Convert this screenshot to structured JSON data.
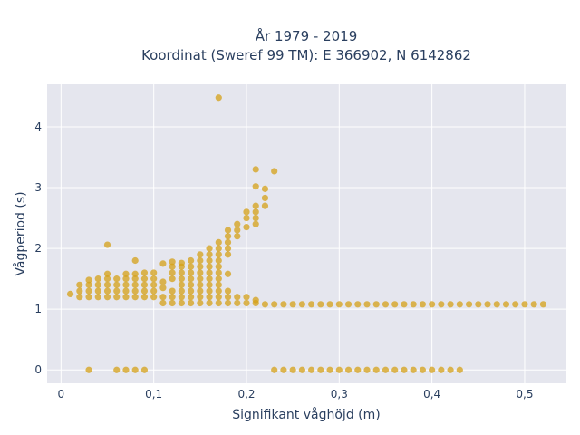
{
  "colors": {
    "plot_bg": "#e5e6ee",
    "grid": "#ffffff",
    "marker": "#d4a017",
    "text": "#2a3f5f"
  },
  "chart_data": {
    "type": "scatter",
    "title": "År 1979 - 2019",
    "subtitle": "Koordinat (Sweref 99 TM): E 366902, N 6142862",
    "xlabel": "Signifikant våghöjd (m)",
    "ylabel": "Vågperiod (s)",
    "xlim": [
      -0.015,
      0.545
    ],
    "ylim": [
      -0.22,
      4.7
    ],
    "x_ticks": [
      0,
      0.1,
      0.2,
      0.3,
      0.4,
      0.5
    ],
    "x_tick_labels": [
      "0",
      "0,1",
      "0,2",
      "0,3",
      "0,4",
      "0,5"
    ],
    "y_ticks": [
      0,
      1,
      2,
      3,
      4
    ],
    "y_tick_labels": [
      "0",
      "1",
      "2",
      "3",
      "4"
    ],
    "grid": true,
    "series": [
      {
        "marker_color": "#d4a017",
        "points": [
          [
            0.01,
            1.25
          ],
          [
            0.02,
            1.2
          ],
          [
            0.02,
            1.3
          ],
          [
            0.02,
            1.4
          ],
          [
            0.03,
            1.2
          ],
          [
            0.03,
            1.3
          ],
          [
            0.03,
            1.4
          ],
          [
            0.03,
            1.48
          ],
          [
            0.04,
            1.2
          ],
          [
            0.04,
            1.3
          ],
          [
            0.04,
            1.4
          ],
          [
            0.04,
            1.5
          ],
          [
            0.05,
            1.2
          ],
          [
            0.05,
            1.3
          ],
          [
            0.05,
            1.4
          ],
          [
            0.05,
            1.5
          ],
          [
            0.05,
            1.58
          ],
          [
            0.05,
            2.06
          ],
          [
            0.06,
            1.2
          ],
          [
            0.06,
            1.3
          ],
          [
            0.06,
            1.4
          ],
          [
            0.06,
            1.5
          ],
          [
            0.07,
            1.2
          ],
          [
            0.07,
            1.3
          ],
          [
            0.07,
            1.4
          ],
          [
            0.07,
            1.5
          ],
          [
            0.07,
            1.58
          ],
          [
            0.08,
            1.2
          ],
          [
            0.08,
            1.3
          ],
          [
            0.08,
            1.4
          ],
          [
            0.08,
            1.5
          ],
          [
            0.08,
            1.58
          ],
          [
            0.08,
            1.8
          ],
          [
            0.09,
            1.2
          ],
          [
            0.09,
            1.3
          ],
          [
            0.09,
            1.4
          ],
          [
            0.09,
            1.5
          ],
          [
            0.09,
            1.6
          ],
          [
            0.1,
            1.2
          ],
          [
            0.1,
            1.3
          ],
          [
            0.1,
            1.4
          ],
          [
            0.1,
            1.5
          ],
          [
            0.1,
            1.6
          ],
          [
            0.11,
            1.1
          ],
          [
            0.11,
            1.2
          ],
          [
            0.11,
            1.35
          ],
          [
            0.11,
            1.45
          ],
          [
            0.11,
            1.75
          ],
          [
            0.12,
            1.1
          ],
          [
            0.12,
            1.2
          ],
          [
            0.12,
            1.3
          ],
          [
            0.12,
            1.5
          ],
          [
            0.12,
            1.6
          ],
          [
            0.12,
            1.7
          ],
          [
            0.12,
            1.78
          ],
          [
            0.13,
            1.1
          ],
          [
            0.13,
            1.2
          ],
          [
            0.13,
            1.3
          ],
          [
            0.13,
            1.4
          ],
          [
            0.13,
            1.5
          ],
          [
            0.13,
            1.6
          ],
          [
            0.13,
            1.7
          ],
          [
            0.13,
            1.76
          ],
          [
            0.14,
            1.1
          ],
          [
            0.14,
            1.2
          ],
          [
            0.14,
            1.3
          ],
          [
            0.14,
            1.4
          ],
          [
            0.14,
            1.5
          ],
          [
            0.14,
            1.6
          ],
          [
            0.14,
            1.7
          ],
          [
            0.14,
            1.8
          ],
          [
            0.15,
            1.1
          ],
          [
            0.15,
            1.2
          ],
          [
            0.15,
            1.3
          ],
          [
            0.15,
            1.4
          ],
          [
            0.15,
            1.5
          ],
          [
            0.15,
            1.6
          ],
          [
            0.15,
            1.7
          ],
          [
            0.15,
            1.8
          ],
          [
            0.15,
            1.9
          ],
          [
            0.16,
            1.1
          ],
          [
            0.16,
            1.2
          ],
          [
            0.16,
            1.3
          ],
          [
            0.16,
            1.4
          ],
          [
            0.16,
            1.5
          ],
          [
            0.16,
            1.6
          ],
          [
            0.16,
            1.7
          ],
          [
            0.16,
            1.8
          ],
          [
            0.16,
            1.9
          ],
          [
            0.16,
            2.0
          ],
          [
            0.17,
            1.1
          ],
          [
            0.17,
            1.2
          ],
          [
            0.17,
            1.3
          ],
          [
            0.17,
            1.4
          ],
          [
            0.17,
            1.5
          ],
          [
            0.17,
            1.6
          ],
          [
            0.17,
            1.7
          ],
          [
            0.17,
            1.8
          ],
          [
            0.17,
            1.9
          ],
          [
            0.17,
            2.0
          ],
          [
            0.17,
            2.1
          ],
          [
            0.17,
            4.48
          ],
          [
            0.18,
            1.1
          ],
          [
            0.18,
            1.2
          ],
          [
            0.18,
            1.3
          ],
          [
            0.18,
            1.58
          ],
          [
            0.18,
            1.9
          ],
          [
            0.18,
            2.0
          ],
          [
            0.18,
            2.1
          ],
          [
            0.18,
            2.2
          ],
          [
            0.18,
            2.3
          ],
          [
            0.19,
            1.1
          ],
          [
            0.19,
            1.2
          ],
          [
            0.19,
            2.2
          ],
          [
            0.19,
            2.3
          ],
          [
            0.19,
            2.4
          ],
          [
            0.2,
            1.1
          ],
          [
            0.2,
            1.2
          ],
          [
            0.2,
            2.35
          ],
          [
            0.2,
            2.5
          ],
          [
            0.2,
            2.6
          ],
          [
            0.21,
            1.1
          ],
          [
            0.21,
            1.15
          ],
          [
            0.21,
            2.4
          ],
          [
            0.21,
            2.5
          ],
          [
            0.21,
            2.6
          ],
          [
            0.21,
            2.7
          ],
          [
            0.21,
            3.02
          ],
          [
            0.21,
            3.3
          ],
          [
            0.22,
            1.08
          ],
          [
            0.22,
            2.7
          ],
          [
            0.22,
            2.83
          ],
          [
            0.22,
            2.98
          ],
          [
            0.23,
            1.08
          ],
          [
            0.23,
            3.27
          ],
          [
            0.24,
            1.08
          ],
          [
            0.25,
            1.08
          ],
          [
            0.26,
            1.08
          ],
          [
            0.27,
            1.08
          ],
          [
            0.28,
            1.08
          ],
          [
            0.29,
            1.08
          ],
          [
            0.3,
            1.08
          ],
          [
            0.31,
            1.08
          ],
          [
            0.32,
            1.08
          ],
          [
            0.33,
            1.08
          ],
          [
            0.34,
            1.08
          ],
          [
            0.35,
            1.08
          ],
          [
            0.36,
            1.08
          ],
          [
            0.37,
            1.08
          ],
          [
            0.38,
            1.08
          ],
          [
            0.39,
            1.08
          ],
          [
            0.4,
            1.08
          ],
          [
            0.41,
            1.08
          ],
          [
            0.42,
            1.08
          ],
          [
            0.43,
            1.08
          ],
          [
            0.44,
            1.08
          ],
          [
            0.45,
            1.08
          ],
          [
            0.46,
            1.08
          ],
          [
            0.47,
            1.08
          ],
          [
            0.48,
            1.08
          ],
          [
            0.49,
            1.08
          ],
          [
            0.5,
            1.08
          ],
          [
            0.51,
            1.08
          ],
          [
            0.52,
            1.08
          ],
          [
            0.03,
            0.0
          ],
          [
            0.06,
            0.0
          ],
          [
            0.07,
            0.0
          ],
          [
            0.08,
            0.0
          ],
          [
            0.09,
            0.0
          ],
          [
            0.23,
            0.0
          ],
          [
            0.24,
            0.0
          ],
          [
            0.25,
            0.0
          ],
          [
            0.26,
            0.0
          ],
          [
            0.27,
            0.0
          ],
          [
            0.28,
            0.0
          ],
          [
            0.29,
            0.0
          ],
          [
            0.3,
            0.0
          ],
          [
            0.31,
            0.0
          ],
          [
            0.32,
            0.0
          ],
          [
            0.33,
            0.0
          ],
          [
            0.34,
            0.0
          ],
          [
            0.35,
            0.0
          ],
          [
            0.36,
            0.0
          ],
          [
            0.37,
            0.0
          ],
          [
            0.38,
            0.0
          ],
          [
            0.39,
            0.0
          ],
          [
            0.4,
            0.0
          ],
          [
            0.41,
            0.0
          ],
          [
            0.42,
            0.0
          ],
          [
            0.43,
            0.0
          ]
        ]
      }
    ]
  }
}
